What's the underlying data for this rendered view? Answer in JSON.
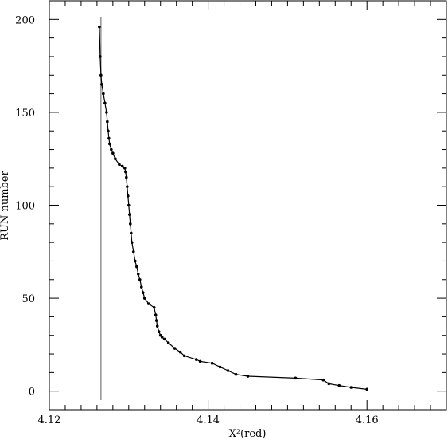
{
  "chart_data": {
    "type": "line",
    "title": "",
    "xlabel": "X²(red)",
    "ylabel": "RUN number",
    "xlim": [
      4.12,
      4.17
    ],
    "ylim": [
      -10,
      210
    ],
    "x_ticks": [
      4.12,
      4.14,
      4.16
    ],
    "x_tick_labels": [
      "4.12",
      "4.14",
      "4.16"
    ],
    "y_ticks": [
      0,
      50,
      100,
      150,
      200
    ],
    "y_tick_labels": [
      "0",
      "50",
      "100",
      "150",
      "200"
    ],
    "grid": false,
    "reference_line": {
      "x": 4.1265,
      "color": "#777777"
    },
    "series": [
      {
        "marker": "dot",
        "x": [
          4.16,
          4.158,
          4.1565,
          4.1552,
          4.1545,
          4.151,
          4.145,
          4.1435,
          4.1425,
          4.1415,
          4.1405,
          4.139,
          4.1385,
          4.137,
          4.1365,
          4.1358,
          4.135,
          4.1345,
          4.1342,
          4.134,
          4.1338,
          4.1336,
          4.1335,
          4.1334,
          4.1332,
          4.1325,
          4.132,
          4.1318,
          4.1316,
          4.1314,
          4.1312,
          4.131,
          4.1308,
          4.1306,
          4.1304,
          4.1303,
          4.1302,
          4.1301,
          4.13,
          4.1299,
          4.1298,
          4.1297,
          4.1296,
          4.1295,
          4.1292,
          4.1288,
          4.1283,
          4.128,
          4.1278,
          4.1276,
          4.1275,
          4.1274,
          4.1273,
          4.1272,
          4.127,
          4.1268,
          4.1266,
          4.1265,
          4.1264,
          4.1263
        ],
        "y": [
          1,
          2,
          3,
          4,
          6,
          7,
          8,
          9,
          11,
          13,
          15,
          16,
          17,
          19,
          21,
          23,
          26,
          28,
          29,
          30,
          32,
          35,
          38,
          41,
          45,
          47,
          50,
          53,
          56,
          60,
          63,
          67,
          70,
          75,
          80,
          85,
          90,
          95,
          100,
          105,
          110,
          115,
          118,
          120,
          121,
          122,
          125,
          128,
          130,
          133,
          136,
          140,
          145,
          150,
          155,
          160,
          165,
          170,
          180,
          196
        ]
      }
    ]
  }
}
